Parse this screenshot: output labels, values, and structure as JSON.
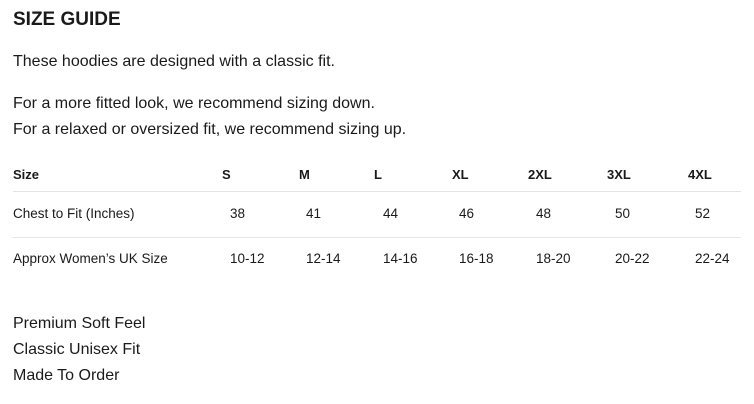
{
  "header": {
    "title": "SIZE GUIDE"
  },
  "paragraphs": [
    "These hoodies are designed with a classic fit.",
    "For a more fitted look, we recommend sizing down.",
    "For a relaxed or oversized fit, we recommend sizing up."
  ],
  "table": {
    "header": [
      "Size",
      "S",
      "M",
      "L",
      "XL",
      "2XL",
      "3XL",
      "4XL"
    ],
    "rows": [
      [
        "Chest to Fit (Inches)",
        "38",
        "41",
        "44",
        "46",
        "48",
        "50",
        "52"
      ],
      [
        "Approx Women’s UK Size",
        "10-12",
        "12-14",
        "14-16",
        "16-18",
        "18-20",
        "20-22",
        "22-24"
      ]
    ]
  },
  "features": [
    "Premium Soft Feel",
    "Classic Unisex Fit",
    "Made To Order"
  ]
}
